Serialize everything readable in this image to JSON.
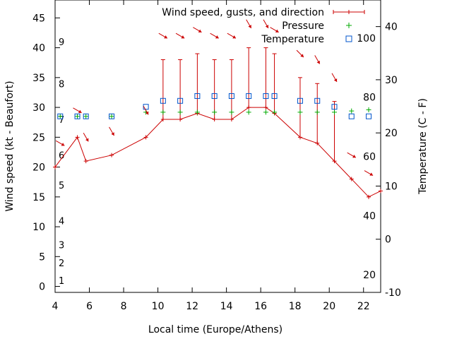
{
  "chart_data": {
    "type": "line",
    "xlabel": "Local time (Europe/Athens)",
    "ylabel": "Wind speed (kt - Beaufort)",
    "y2label": "Temperature (C - F)",
    "xlim": [
      4,
      23
    ],
    "ylim": [
      -1,
      48
    ],
    "y2lim": [
      -10,
      45
    ],
    "x_ticks": [
      4,
      6,
      8,
      10,
      12,
      14,
      16,
      18,
      20,
      22
    ],
    "y_ticks": [
      0,
      5,
      10,
      15,
      20,
      25,
      30,
      35,
      40,
      45
    ],
    "y2_ticks": [
      -10,
      0,
      10,
      20,
      30,
      40
    ],
    "beaufort_labels": [
      {
        "label": "1",
        "kt": 1
      },
      {
        "label": "2",
        "kt": 4
      },
      {
        "label": "3",
        "kt": 7
      },
      {
        "label": "4",
        "kt": 11
      },
      {
        "label": "5",
        "kt": 17
      },
      {
        "label": "6",
        "kt": 22
      },
      {
        "label": "7",
        "kt": 28
      },
      {
        "label": "8",
        "kt": 34
      },
      {
        "label": "9",
        "kt": 41
      }
    ],
    "fahrenheit_labels": [
      {
        "label": "20",
        "celsius": -6.7
      },
      {
        "label": "40",
        "celsius": 4.4
      },
      {
        "label": "60",
        "celsius": 15.6
      },
      {
        "label": "80",
        "celsius": 26.7
      },
      {
        "label": "100",
        "celsius": 37.8
      }
    ],
    "legend_position": "top-right",
    "series": [
      {
        "name": "Wind speed, gusts, and direction",
        "color": "#cc0000",
        "points": [
          {
            "x": 4.0,
            "y": 20
          },
          {
            "x": 5.3,
            "y": 25
          },
          {
            "x": 5.8,
            "y": 21
          },
          {
            "x": 7.3,
            "y": 22
          },
          {
            "x": 9.3,
            "y": 25
          },
          {
            "x": 10.3,
            "y": 28,
            "gust": 38
          },
          {
            "x": 11.3,
            "y": 28,
            "gust": 38
          },
          {
            "x": 12.3,
            "y": 29,
            "gust": 39
          },
          {
            "x": 13.3,
            "y": 28,
            "gust": 38
          },
          {
            "x": 14.3,
            "y": 28,
            "gust": 38
          },
          {
            "x": 15.3,
            "y": 30,
            "gust": 40
          },
          {
            "x": 16.3,
            "y": 30,
            "gust": 40
          },
          {
            "x": 16.8,
            "y": 29,
            "gust": 39
          },
          {
            "x": 18.3,
            "y": 25,
            "gust": 35
          },
          {
            "x": 19.3,
            "y": 24,
            "gust": 34
          },
          {
            "x": 20.3,
            "y": 21,
            "gust": 31
          },
          {
            "x": 21.3,
            "y": 18
          },
          {
            "x": 22.3,
            "y": 15
          },
          {
            "x": 23.0,
            "y": 16
          }
        ]
      },
      {
        "name": "Pressure",
        "color": "#00aa00",
        "points": [
          {
            "x": 4.3,
            "y": 28.5
          },
          {
            "x": 5.3,
            "y": 28.5
          },
          {
            "x": 5.8,
            "y": 28.5
          },
          {
            "x": 7.3,
            "y": 28.5
          },
          {
            "x": 9.3,
            "y": 29.2
          },
          {
            "x": 10.3,
            "y": 29.2
          },
          {
            "x": 11.3,
            "y": 29.2
          },
          {
            "x": 12.3,
            "y": 29.2
          },
          {
            "x": 13.3,
            "y": 29.2
          },
          {
            "x": 14.3,
            "y": 29.2
          },
          {
            "x": 15.3,
            "y": 29.2
          },
          {
            "x": 16.3,
            "y": 29.2
          },
          {
            "x": 16.8,
            "y": 29.2
          },
          {
            "x": 18.3,
            "y": 29.2
          },
          {
            "x": 19.3,
            "y": 29.2
          },
          {
            "x": 20.3,
            "y": 29.2
          },
          {
            "x": 21.3,
            "y": 29.4
          },
          {
            "x": 22.3,
            "y": 29.6
          }
        ]
      },
      {
        "name": "Temperature",
        "color": "#0055cc",
        "points": [
          {
            "x": 4.3,
            "y": 28.5
          },
          {
            "x": 5.3,
            "y": 28.5
          },
          {
            "x": 5.8,
            "y": 28.5
          },
          {
            "x": 7.3,
            "y": 28.5
          },
          {
            "x": 9.3,
            "y": 30.1
          },
          {
            "x": 10.3,
            "y": 31.1
          },
          {
            "x": 11.3,
            "y": 31.1
          },
          {
            "x": 12.3,
            "y": 31.9
          },
          {
            "x": 13.3,
            "y": 31.9
          },
          {
            "x": 14.3,
            "y": 31.9
          },
          {
            "x": 15.3,
            "y": 31.9
          },
          {
            "x": 16.3,
            "y": 31.9
          },
          {
            "x": 16.8,
            "y": 31.9
          },
          {
            "x": 18.3,
            "y": 31.1
          },
          {
            "x": 19.3,
            "y": 31.1
          },
          {
            "x": 20.3,
            "y": 30.1
          },
          {
            "x": 21.3,
            "y": 28.5
          },
          {
            "x": 22.3,
            "y": 28.5
          }
        ]
      }
    ],
    "direction_arrows": [
      {
        "x": 4.3,
        "y": 24,
        "direction_deg": 300
      },
      {
        "x": 5.3,
        "y": 29.5,
        "direction_deg": 300
      },
      {
        "x": 5.8,
        "y": 25,
        "direction_deg": 330
      },
      {
        "x": 7.3,
        "y": 26,
        "direction_deg": 330
      },
      {
        "x": 9.3,
        "y": 29.5,
        "direction_deg": 330
      },
      {
        "x": 10.3,
        "y": 42,
        "direction_deg": 300
      },
      {
        "x": 11.3,
        "y": 42,
        "direction_deg": 300
      },
      {
        "x": 12.3,
        "y": 43,
        "direction_deg": 300
      },
      {
        "x": 13.3,
        "y": 42,
        "direction_deg": 300
      },
      {
        "x": 14.3,
        "y": 42,
        "direction_deg": 300
      },
      {
        "x": 15.3,
        "y": 44,
        "direction_deg": 330
      },
      {
        "x": 16.3,
        "y": 44,
        "direction_deg": 330
      },
      {
        "x": 16.8,
        "y": 43,
        "direction_deg": 300
      },
      {
        "x": 18.3,
        "y": 39,
        "direction_deg": 315
      },
      {
        "x": 19.3,
        "y": 38,
        "direction_deg": 330
      },
      {
        "x": 20.3,
        "y": 35,
        "direction_deg": 330
      },
      {
        "x": 21.3,
        "y": 22,
        "direction_deg": 300
      },
      {
        "x": 22.3,
        "y": 19,
        "direction_deg": 300
      }
    ]
  }
}
